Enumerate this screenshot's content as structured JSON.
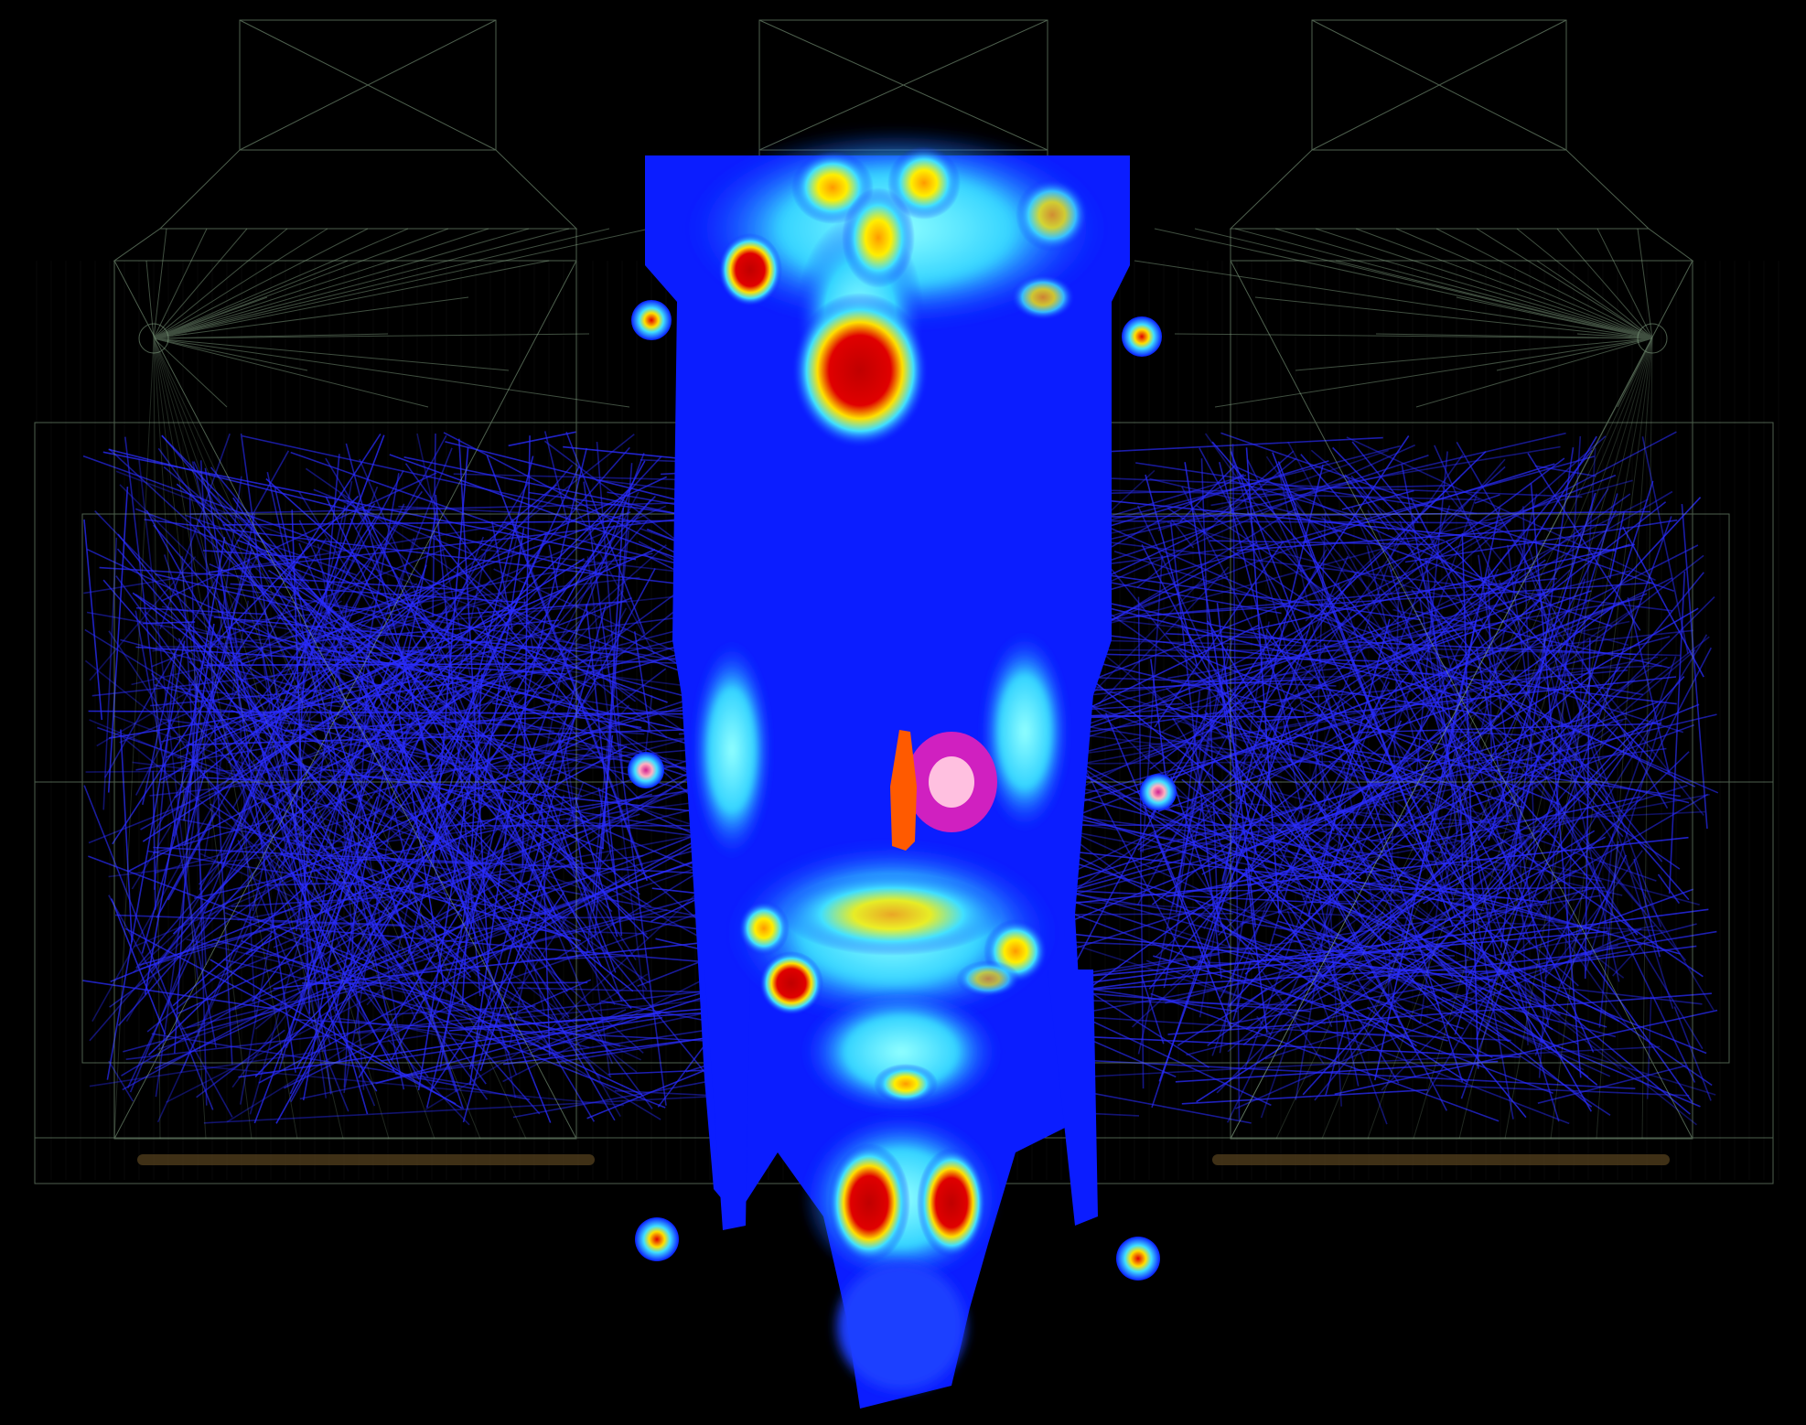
{
  "scene": {
    "description_free": true,
    "colors": {
      "background": "#000000",
      "wireframe": "#8fb08f",
      "wireframe_faint": "#5f7d5f",
      "ray": "#2a2cff",
      "heat_low": "#0a1cff",
      "heat_mid": "#35d4ff",
      "heat_high": "#ffee00",
      "heat_peak": "#d40000",
      "magenta": "#d020c0",
      "floor_bar": "#7a5a2a"
    },
    "ray_count": 900,
    "colormap": "jet"
  }
}
